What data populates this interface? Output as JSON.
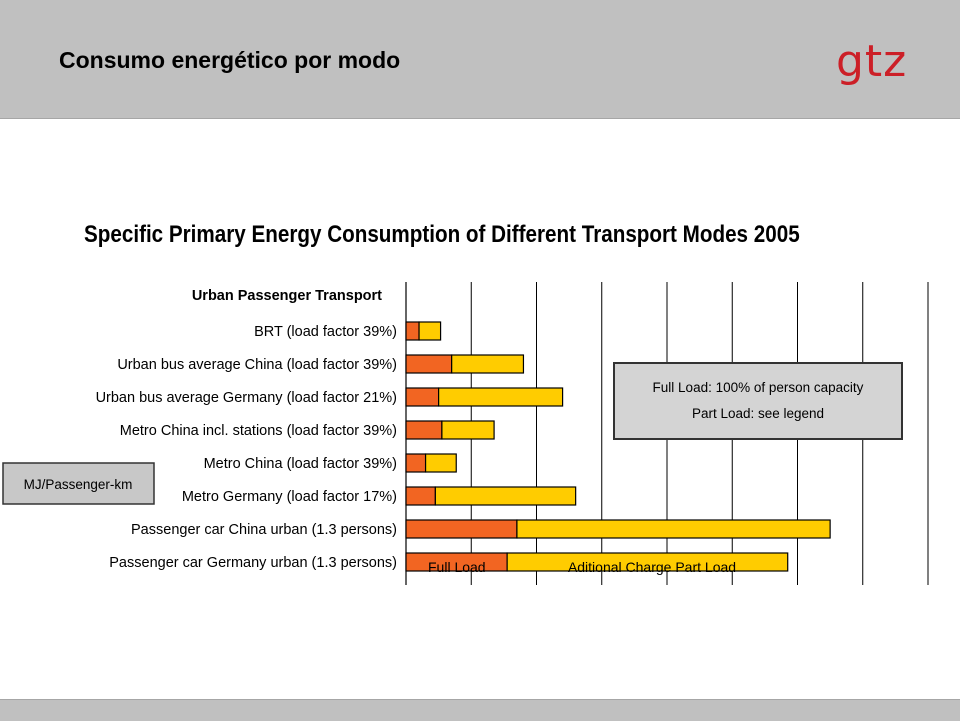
{
  "slide": {
    "title": "Consumo energético por modo",
    "logo_text": "gtz"
  },
  "chart_data": {
    "type": "bar",
    "orientation": "horizontal",
    "stacked": true,
    "title": "Specific Primary Energy Consumption of Different Transport Modes 2005",
    "category_group_label": "Urban Passenger Transport",
    "unit_label": "MJ/Passenger-km",
    "note_lines": [
      "Full Load: 100% of person capacity",
      "Part Load: see legend"
    ],
    "categories": [
      "BRT (load factor 39%)",
      "Urban bus average China (load factor 39%)",
      "Urban bus average Germany (load factor 21%)",
      "Metro China incl. stations (load factor 39%)",
      "Metro China (load factor 39%)",
      "Metro Germany (load factor 17%)",
      "Passenger car China urban (1.3 persons)",
      "Passenger car Germany urban (1.3 persons)"
    ],
    "series": [
      {
        "name": "Full Load",
        "color": "#f26522",
        "values": [
          0.2,
          0.7,
          0.5,
          0.55,
          0.3,
          0.45,
          1.7,
          1.55
        ]
      },
      {
        "name": "Aditional Charge Part Load",
        "color": "#ffcc00",
        "values": [
          0.33,
          1.1,
          1.9,
          0.8,
          0.47,
          2.15,
          4.8,
          4.3
        ]
      }
    ],
    "xlim": [
      0,
      8
    ],
    "x_gridlines": 8,
    "grid": true,
    "x_tick_labels_visible": false,
    "legend_placement": "inside-bottom-bar"
  },
  "colors": {
    "header_bg": "#c0c0c0",
    "logo": "#cc1f27",
    "full_load": "#f26522",
    "part_load": "#ffcc00",
    "note_box": "#d4d4d4"
  }
}
